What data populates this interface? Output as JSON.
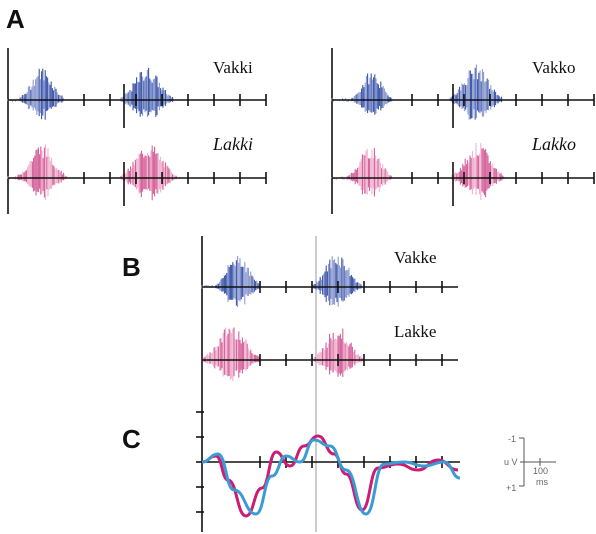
{
  "panels": {
    "a": {
      "letter": "A"
    },
    "b": {
      "letter": "B"
    },
    "c": {
      "letter": "C"
    }
  },
  "words": {
    "vakki": "Vakki",
    "lakki": "Lakki",
    "vakko": "Vakko",
    "lakko": "Lakko",
    "vakke": "Vakke",
    "lakke": "Lakke"
  },
  "scale": {
    "neg": "-1",
    "unit": "u V",
    "pos": "+1",
    "ms_value": "100",
    "ms_unit": "ms"
  },
  "colors": {
    "blue_wave": "#3b55a8",
    "blue_light": "#8d9ad0",
    "pink_wave": "#d4609a",
    "pink_light": "#efb3cf",
    "erp_magenta": "#cc1d74",
    "erp_cyan": "#3a9bd5"
  }
}
